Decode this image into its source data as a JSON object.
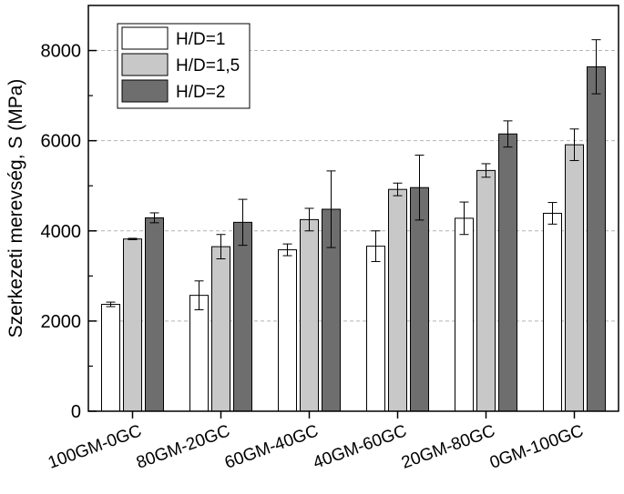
{
  "chart_data": {
    "type": "bar",
    "title": "",
    "xlabel": "",
    "ylabel": "Szerkezeti merevség, S (MPa)",
    "ylim": [
      0,
      9000
    ],
    "yticks": [
      0,
      2000,
      4000,
      6000,
      8000
    ],
    "grid": "horizontal dashed",
    "legend_position": "top-left",
    "categories": [
      "100GM-0GC",
      "80GM-20GC",
      "60GM-40GC",
      "40GM-60GC",
      "20GM-80GC",
      "0GM-100GC"
    ],
    "series": [
      {
        "name": "H/D=1",
        "color": "#ffffff",
        "values": [
          2370,
          2570,
          3580,
          3660,
          4280,
          4390
        ],
        "errors": [
          50,
          320,
          130,
          340,
          360,
          240
        ]
      },
      {
        "name": "H/D=1,5",
        "color": "#c8c8c8",
        "values": [
          3820,
          3650,
          4250,
          4920,
          5340,
          5910
        ],
        "errors": [
          15,
          270,
          250,
          140,
          150,
          350
        ]
      },
      {
        "name": "H/D=2",
        "color": "#6e6e6e",
        "values": [
          4290,
          4190,
          4480,
          4960,
          6150,
          7640
        ],
        "errors": [
          110,
          510,
          850,
          720,
          290,
          600
        ]
      }
    ]
  }
}
